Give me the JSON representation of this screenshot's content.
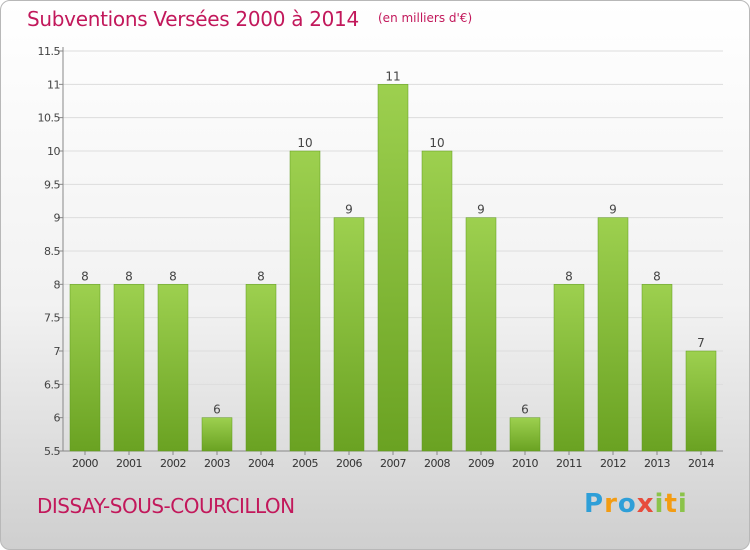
{
  "title": "Subventions Versées 2000 à 2014",
  "subtitle": "(en milliers d'€)",
  "place": "DISSAY-SOUS-COURCILLON",
  "logo": {
    "p": "P",
    "r": "r",
    "o": "o",
    "x": "x",
    "i": "i",
    "t": "t",
    "i2": "i"
  },
  "chart_data": {
    "type": "bar",
    "title": "Subventions Versées 2000 à 2014",
    "subtitle": "(en milliers d'€)",
    "categories": [
      "2000",
      "2001",
      "2002",
      "2003",
      "2004",
      "2005",
      "2006",
      "2007",
      "2008",
      "2009",
      "2010",
      "2011",
      "2012",
      "2013",
      "2014"
    ],
    "values": [
      8,
      8,
      8,
      6,
      8,
      10,
      9,
      11,
      10,
      9,
      6,
      8,
      9,
      8,
      7
    ],
    "data_labels": [
      "8",
      "8",
      "8",
      "6",
      "8",
      "10",
      "9",
      "11",
      "10",
      "9",
      "6",
      "8",
      "9",
      "8",
      "7"
    ],
    "ylim": [
      5.5,
      11.5
    ],
    "yticks": [
      5.5,
      6,
      6.5,
      7,
      7.5,
      8,
      8.5,
      9,
      9.5,
      10,
      10.5,
      11,
      11.5
    ],
    "ytick_labels": [
      "5.5",
      "6",
      "6.5",
      "7",
      "7.5",
      "8",
      "8.5",
      "9",
      "9.5",
      "10",
      "10.5",
      "11",
      "11.5"
    ],
    "grid": "horizontal",
    "bar_color_top": "#9dd04f",
    "bar_color_bottom": "#6aa222",
    "grid_color": "#dddddd"
  }
}
